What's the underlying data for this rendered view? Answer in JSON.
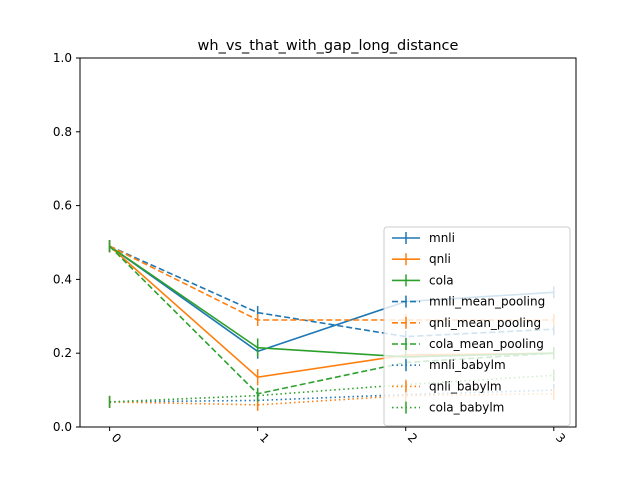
{
  "chart_data": {
    "type": "line",
    "title": "wh_vs_that_with_gap_long_distance",
    "xlabel": "",
    "ylabel": "",
    "x": [
      0,
      1,
      2,
      3
    ],
    "xtick_labels": [
      "0",
      "1",
      "2",
      "3"
    ],
    "ytick_labels": [
      "0.0",
      "0.2",
      "0.4",
      "0.6",
      "0.8",
      "1.0"
    ],
    "xlim": [
      -0.2,
      3.15
    ],
    "ylim": [
      0.0,
      1.0
    ],
    "grid": false,
    "legend_position": "center-right",
    "series": [
      {
        "name": "mnli",
        "color": "#1f77b4",
        "style": "solid",
        "values": [
          0.49,
          0.205,
          0.34,
          0.365
        ],
        "errors": [
          0.0,
          0.02,
          0.012,
          0.015
        ]
      },
      {
        "name": "qnli",
        "color": "#ff7f0e",
        "style": "solid",
        "values": [
          0.49,
          0.135,
          0.195,
          0.2
        ],
        "errors": [
          0.0,
          0.022,
          0.01,
          0.01
        ]
      },
      {
        "name": "cola",
        "color": "#2ca02c",
        "style": "solid",
        "values": [
          0.49,
          0.215,
          0.19,
          0.2
        ],
        "errors": [
          0.0,
          0.025,
          0.008,
          0.008
        ]
      },
      {
        "name": "mnli_mean_pooling",
        "color": "#1f77b4",
        "style": "dashed",
        "values": [
          0.49,
          0.31,
          0.245,
          0.265
        ],
        "errors": [
          0.0,
          0.018,
          0.01,
          0.01
        ]
      },
      {
        "name": "qnli_mean_pooling",
        "color": "#ff7f0e",
        "style": "dashed",
        "values": [
          0.49,
          0.29,
          0.29,
          0.29
        ],
        "errors": [
          0.0,
          0.012,
          0.008,
          0.008
        ]
      },
      {
        "name": "cola_mean_pooling",
        "color": "#2ca02c",
        "style": "dashed",
        "values": [
          0.49,
          0.09,
          0.175,
          0.2
        ],
        "errors": [
          0.0,
          0.015,
          0.01,
          0.01
        ]
      },
      {
        "name": "mnli_babylm",
        "color": "#1f77b4",
        "style": "dotted",
        "values": [
          0.068,
          0.072,
          0.088,
          0.1
        ],
        "errors": [
          0.0,
          0.006,
          0.006,
          0.006
        ]
      },
      {
        "name": "qnli_babylm",
        "color": "#ff7f0e",
        "style": "dotted",
        "values": [
          0.068,
          0.06,
          0.085,
          0.09
        ],
        "errors": [
          0.0,
          0.006,
          0.006,
          0.006
        ]
      },
      {
        "name": "cola_babylm",
        "color": "#2ca02c",
        "style": "dotted",
        "values": [
          0.068,
          0.085,
          0.115,
          0.14
        ],
        "errors": [
          0.0,
          0.008,
          0.008,
          0.008
        ]
      }
    ]
  }
}
